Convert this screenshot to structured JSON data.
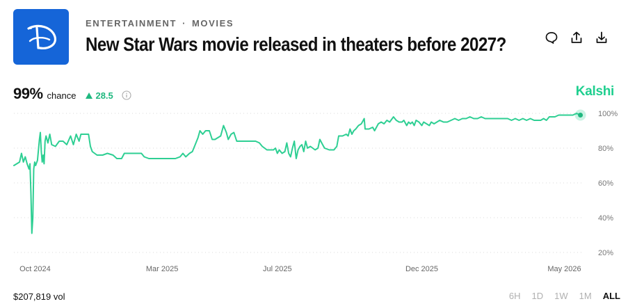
{
  "header": {
    "category": "ENTERTAINMENT",
    "subcategory": "MOVIES",
    "separator": "·",
    "title": "New Star Wars movie released in theaters before 2027?",
    "logo_icon": "disney-logo-icon",
    "actions": [
      "comment-icon",
      "share-icon",
      "download-icon"
    ]
  },
  "summary": {
    "chance_value": "99%",
    "chance_label": "chance",
    "delta_value": "28.5",
    "delta_direction": "up",
    "brand": "Kalshi"
  },
  "footer": {
    "volume": "$207,819 vol",
    "ranges": [
      "6H",
      "1D",
      "1W",
      "1M",
      "ALL"
    ],
    "active_range": "ALL"
  },
  "colors": {
    "accent": "#1fcf8f",
    "line": "#2ecf93",
    "logo_bg": "#1565d8"
  },
  "chart_data": {
    "type": "line",
    "x_tick_labels": [
      "Oct 2024",
      "Mar 2025",
      "Jul 2025",
      "Dec 2025",
      "May 2026"
    ],
    "x_tick_dates": [
      "2024-10-01",
      "2025-03-01",
      "2025-07-01",
      "2025-12-01",
      "2026-05-01"
    ],
    "x_range": [
      "2024-09-25",
      "2026-05-22"
    ],
    "y_tick_labels": [
      "100%",
      "80%",
      "60%",
      "40%",
      "20%"
    ],
    "y_ticks": [
      100,
      80,
      60,
      40,
      20
    ],
    "ylim": [
      20,
      100
    ],
    "grid": "dotted-horizontal",
    "series": [
      {
        "values": [
          [
            "2024-09-25",
            70
          ],
          [
            "2024-09-28",
            71
          ],
          [
            "2024-10-01",
            72
          ],
          [
            "2024-10-03",
            77
          ],
          [
            "2024-10-05",
            72
          ],
          [
            "2024-10-07",
            75
          ],
          [
            "2024-10-09",
            71
          ],
          [
            "2024-10-11",
            68
          ],
          [
            "2024-10-12",
            71
          ],
          [
            "2024-10-13",
            55
          ],
          [
            "2024-10-14",
            31
          ],
          [
            "2024-10-15",
            40
          ],
          [
            "2024-10-16",
            68
          ],
          [
            "2024-10-17",
            72
          ],
          [
            "2024-10-18",
            70
          ],
          [
            "2024-10-20",
            73
          ],
          [
            "2024-10-22",
            85
          ],
          [
            "2024-10-23",
            89
          ],
          [
            "2024-10-24",
            78
          ],
          [
            "2024-10-25",
            72
          ],
          [
            "2024-10-26",
            76
          ],
          [
            "2024-10-27",
            71
          ],
          [
            "2024-10-28",
            84
          ],
          [
            "2024-10-29",
            87
          ],
          [
            "2024-10-31",
            83
          ],
          [
            "2024-11-02",
            88
          ],
          [
            "2024-11-04",
            82
          ],
          [
            "2024-11-08",
            81
          ],
          [
            "2024-11-12",
            84
          ],
          [
            "2024-11-16",
            84
          ],
          [
            "2024-11-20",
            82
          ],
          [
            "2024-11-24",
            87
          ],
          [
            "2024-11-27",
            82
          ],
          [
            "2024-11-30",
            88
          ],
          [
            "2024-12-03",
            84
          ],
          [
            "2024-12-05",
            88
          ],
          [
            "2024-12-10",
            88
          ],
          [
            "2024-12-13",
            88
          ],
          [
            "2024-12-15",
            81
          ],
          [
            "2024-12-17",
            78
          ],
          [
            "2024-12-22",
            76
          ],
          [
            "2024-12-28",
            76
          ],
          [
            "2025-01-02",
            77
          ],
          [
            "2025-01-08",
            76
          ],
          [
            "2025-01-12",
            74
          ],
          [
            "2025-01-17",
            74
          ],
          [
            "2025-01-20",
            77
          ],
          [
            "2025-02-01",
            77
          ],
          [
            "2025-02-07",
            77
          ],
          [
            "2025-02-10",
            75
          ],
          [
            "2025-02-15",
            74
          ],
          [
            "2025-02-25",
            74
          ],
          [
            "2025-03-05",
            74
          ],
          [
            "2025-03-10",
            74
          ],
          [
            "2025-03-15",
            74
          ],
          [
            "2025-03-20",
            75
          ],
          [
            "2025-03-23",
            77
          ],
          [
            "2025-03-26",
            75
          ],
          [
            "2025-03-30",
            77
          ],
          [
            "2025-04-02",
            78
          ],
          [
            "2025-04-05",
            82
          ],
          [
            "2025-04-08",
            86
          ],
          [
            "2025-04-10",
            90
          ],
          [
            "2025-04-13",
            88
          ],
          [
            "2025-04-16",
            90
          ],
          [
            "2025-04-20",
            90
          ],
          [
            "2025-04-23",
            85
          ],
          [
            "2025-04-26",
            85
          ],
          [
            "2025-04-29",
            86
          ],
          [
            "2025-05-02",
            87
          ],
          [
            "2025-05-05",
            93
          ],
          [
            "2025-05-08",
            89
          ],
          [
            "2025-05-10",
            85
          ],
          [
            "2025-05-13",
            88
          ],
          [
            "2025-05-16",
            89
          ],
          [
            "2025-05-19",
            84
          ],
          [
            "2025-05-25",
            84
          ],
          [
            "2025-06-01",
            84
          ],
          [
            "2025-06-08",
            84
          ],
          [
            "2025-06-12",
            83
          ],
          [
            "2025-06-15",
            81
          ],
          [
            "2025-06-20",
            79
          ],
          [
            "2025-06-25",
            79
          ],
          [
            "2025-06-27",
            79
          ],
          [
            "2025-06-29",
            80
          ],
          [
            "2025-07-01",
            77
          ],
          [
            "2025-07-03",
            79
          ],
          [
            "2025-07-06",
            77
          ],
          [
            "2025-07-09",
            78
          ],
          [
            "2025-07-11",
            83
          ],
          [
            "2025-07-13",
            77
          ],
          [
            "2025-07-15",
            75
          ],
          [
            "2025-07-17",
            80
          ],
          [
            "2025-07-19",
            84
          ],
          [
            "2025-07-21",
            74
          ],
          [
            "2025-07-23",
            79
          ],
          [
            "2025-07-25",
            81
          ],
          [
            "2025-07-27",
            82
          ],
          [
            "2025-07-29",
            78
          ],
          [
            "2025-07-31",
            84
          ],
          [
            "2025-08-02",
            80
          ],
          [
            "2025-08-05",
            81
          ],
          [
            "2025-08-10",
            79
          ],
          [
            "2025-08-13",
            80
          ],
          [
            "2025-08-15",
            85
          ],
          [
            "2025-08-18",
            82
          ],
          [
            "2025-08-20",
            80
          ],
          [
            "2025-08-25",
            79
          ],
          [
            "2025-08-30",
            79
          ],
          [
            "2025-09-02",
            81
          ],
          [
            "2025-09-04",
            87
          ],
          [
            "2025-09-08",
            87
          ],
          [
            "2025-09-12",
            88
          ],
          [
            "2025-09-14",
            87
          ],
          [
            "2025-09-16",
            91
          ],
          [
            "2025-09-18",
            88
          ],
          [
            "2025-09-20",
            90
          ],
          [
            "2025-09-22",
            91
          ],
          [
            "2025-09-25",
            93
          ],
          [
            "2025-09-28",
            94
          ],
          [
            "2025-10-01",
            97
          ],
          [
            "2025-10-02",
            91
          ],
          [
            "2025-10-04",
            91
          ],
          [
            "2025-10-06",
            91
          ],
          [
            "2025-10-10",
            92
          ],
          [
            "2025-10-12",
            90
          ],
          [
            "2025-10-14",
            92
          ],
          [
            "2025-10-16",
            94
          ],
          [
            "2025-10-19",
            95
          ],
          [
            "2025-10-22",
            94
          ],
          [
            "2025-10-25",
            96
          ],
          [
            "2025-10-28",
            95
          ],
          [
            "2025-11-01",
            98
          ],
          [
            "2025-11-04",
            96
          ],
          [
            "2025-11-07",
            95
          ],
          [
            "2025-11-10",
            95
          ],
          [
            "2025-11-12",
            96
          ],
          [
            "2025-11-15",
            93
          ],
          [
            "2025-11-17",
            95
          ],
          [
            "2025-11-19",
            94
          ],
          [
            "2025-11-21",
            95
          ],
          [
            "2025-11-23",
            93
          ],
          [
            "2025-11-25",
            96
          ],
          [
            "2025-11-28",
            95
          ],
          [
            "2025-12-01",
            93
          ],
          [
            "2025-12-03",
            95
          ],
          [
            "2025-12-06",
            94
          ],
          [
            "2025-12-09",
            93
          ],
          [
            "2025-12-11",
            95
          ],
          [
            "2025-12-14",
            94
          ],
          [
            "2025-12-17",
            95
          ],
          [
            "2025-12-20",
            96
          ],
          [
            "2025-12-24",
            95
          ],
          [
            "2025-12-28",
            95
          ],
          [
            "2026-01-01",
            96
          ],
          [
            "2026-01-05",
            97
          ],
          [
            "2026-01-09",
            96
          ],
          [
            "2026-01-13",
            97
          ],
          [
            "2026-01-17",
            97
          ],
          [
            "2026-01-21",
            98
          ],
          [
            "2026-01-25",
            97
          ],
          [
            "2026-01-29",
            97
          ],
          [
            "2026-02-02",
            98
          ],
          [
            "2026-02-06",
            97
          ],
          [
            "2026-02-10",
            97
          ],
          [
            "2026-02-15",
            97
          ],
          [
            "2026-02-20",
            97
          ],
          [
            "2026-02-25",
            97
          ],
          [
            "2026-03-02",
            97
          ],
          [
            "2026-03-06",
            96
          ],
          [
            "2026-03-10",
            97
          ],
          [
            "2026-03-14",
            96
          ],
          [
            "2026-03-18",
            97
          ],
          [
            "2026-03-22",
            96
          ],
          [
            "2026-03-26",
            97
          ],
          [
            "2026-03-30",
            96
          ],
          [
            "2026-04-03",
            96
          ],
          [
            "2026-04-06",
            96
          ],
          [
            "2026-04-09",
            97
          ],
          [
            "2026-04-12",
            96
          ],
          [
            "2026-04-15",
            98
          ],
          [
            "2026-04-18",
            98
          ],
          [
            "2026-04-21",
            98
          ],
          [
            "2026-04-25",
            99
          ],
          [
            "2026-04-29",
            99
          ],
          [
            "2026-05-03",
            99
          ],
          [
            "2026-05-06",
            99
          ],
          [
            "2026-05-10",
            99
          ],
          [
            "2026-05-14",
            100
          ],
          [
            "2026-05-18",
            99
          ]
        ]
      }
    ]
  }
}
